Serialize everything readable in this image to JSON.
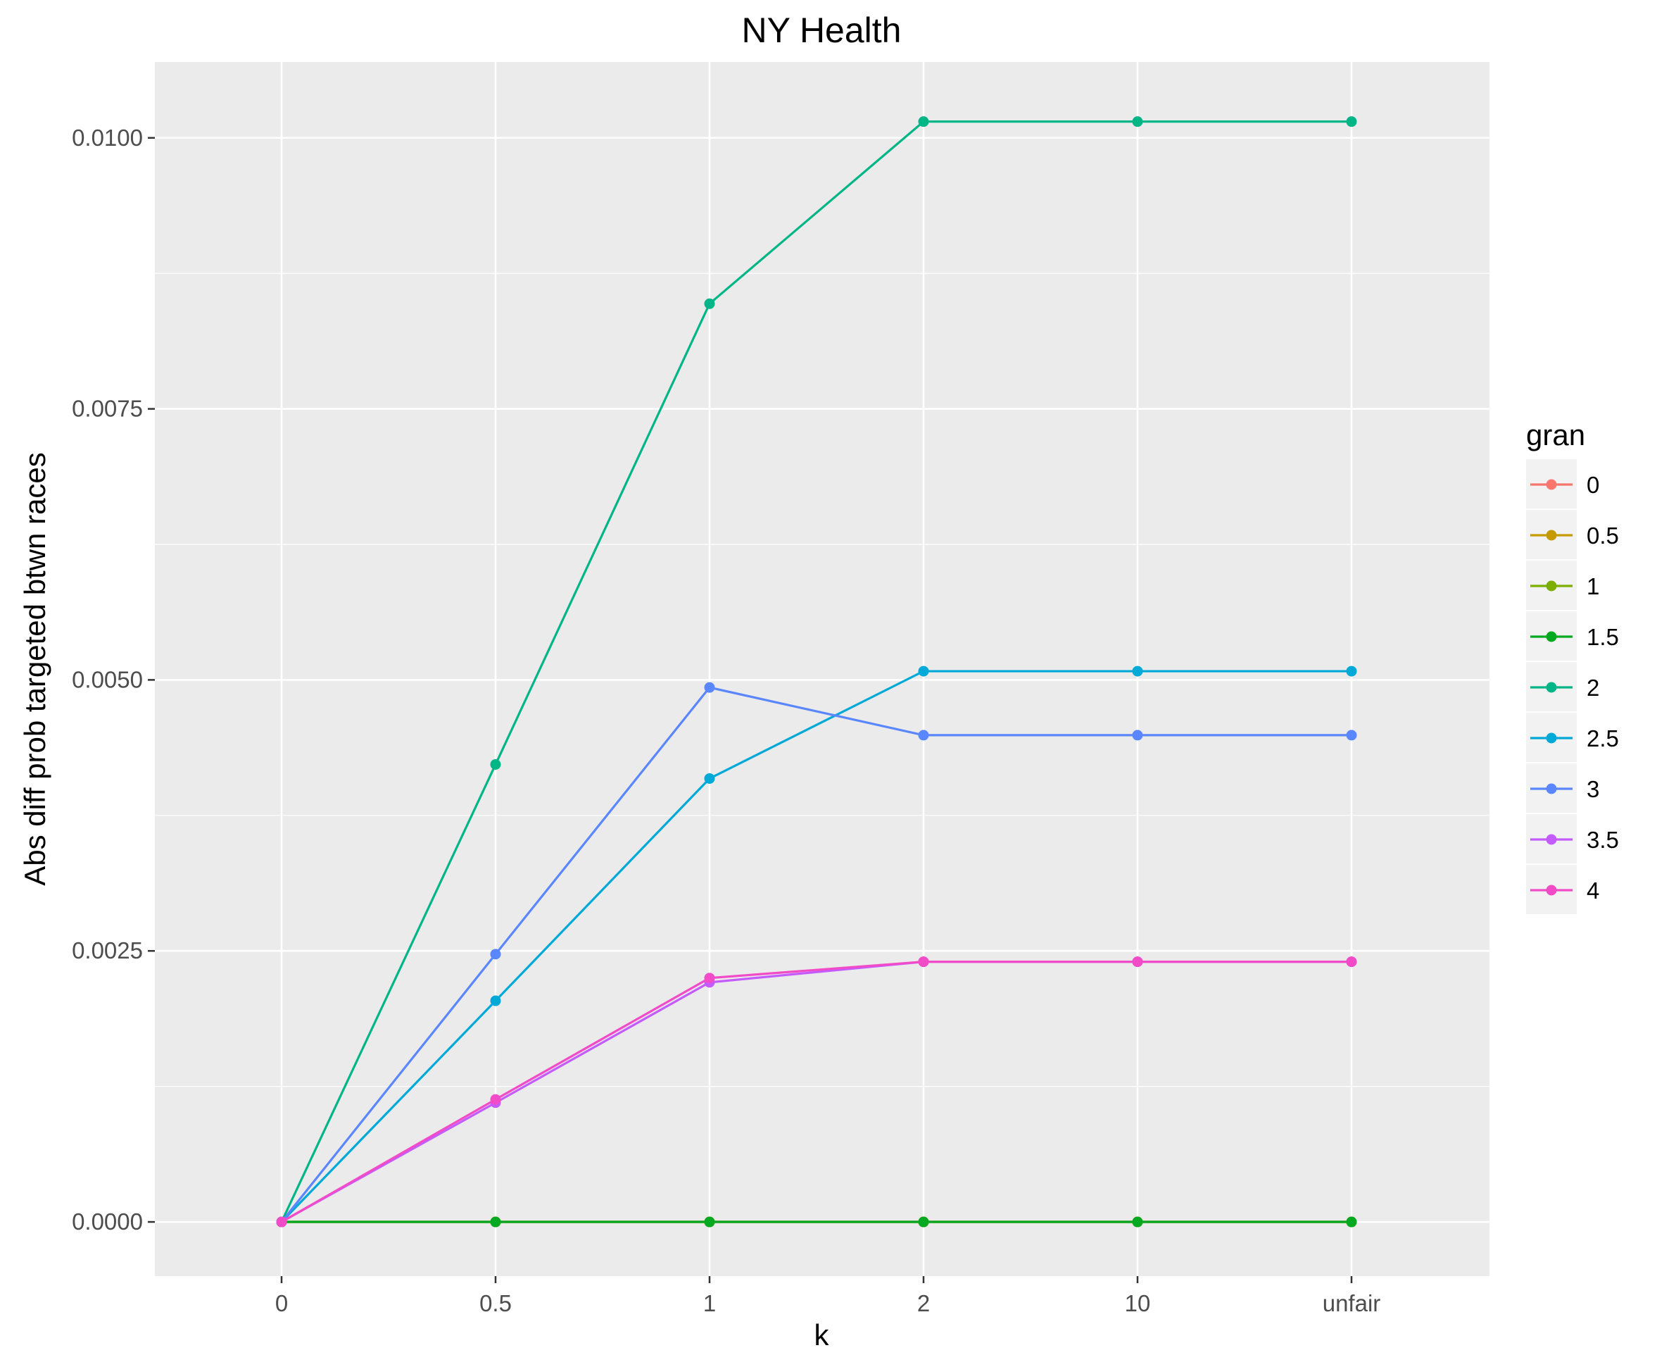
{
  "chart_data": {
    "type": "line",
    "title": "NY Health",
    "xlabel": "k",
    "ylabel": "Abs diff prob targeted btwn races",
    "categories": [
      "0",
      "0.5",
      "1",
      "2",
      "10",
      "unfair"
    ],
    "ylim": [
      -0.0005,
      0.0107
    ],
    "yticks": [
      0.0,
      0.0025,
      0.005,
      0.0075,
      0.01
    ],
    "ytick_labels": [
      "0.0000",
      "0.0025",
      "0.0050",
      "0.0075",
      "0.0100"
    ],
    "grid": true,
    "legend": {
      "title": "gran",
      "position": "right"
    },
    "series": [
      {
        "name": "0",
        "color": "#F8766D",
        "values": [
          0,
          0,
          0,
          0,
          0,
          0
        ]
      },
      {
        "name": "0.5",
        "color": "#C49A00",
        "values": [
          0,
          0,
          0,
          0,
          0,
          0
        ]
      },
      {
        "name": "1",
        "color": "#7CAE00",
        "values": [
          0,
          0,
          0,
          0,
          0,
          0
        ]
      },
      {
        "name": "1.5",
        "color": "#00A91F",
        "values": [
          0,
          0,
          0,
          0,
          0,
          0
        ]
      },
      {
        "name": "2",
        "color": "#00B586",
        "values": [
          0,
          0.00422,
          0.00847,
          0.01015,
          0.01015,
          0.01015
        ]
      },
      {
        "name": "2.5",
        "color": "#00A9D8",
        "values": [
          0,
          0.00204,
          0.00409,
          0.00508,
          0.00508,
          0.00508
        ]
      },
      {
        "name": "3",
        "color": "#5A87FF",
        "values": [
          0,
          0.00247,
          0.00493,
          0.00449,
          0.00449,
          0.00449
        ]
      },
      {
        "name": "3.5",
        "color": "#C45BFF",
        "values": [
          0,
          0.0011,
          0.00221,
          0.0024,
          0.0024,
          0.0024
        ]
      },
      {
        "name": "4",
        "color": "#F24BC7",
        "values": [
          0,
          0.00113,
          0.00225,
          0.0024,
          0.0024,
          0.0024
        ]
      }
    ]
  }
}
